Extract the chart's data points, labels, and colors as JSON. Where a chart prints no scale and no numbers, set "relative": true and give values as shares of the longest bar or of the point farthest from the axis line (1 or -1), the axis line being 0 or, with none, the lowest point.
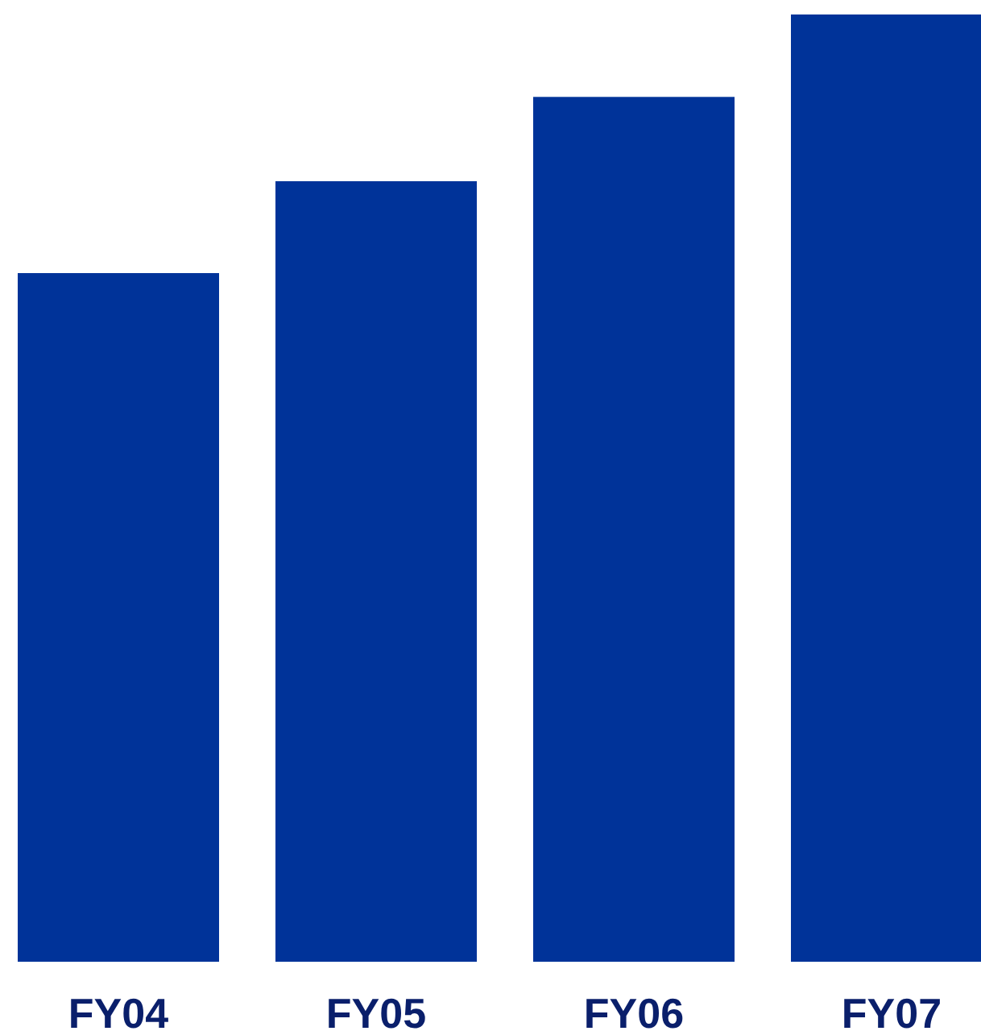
{
  "chart_data": {
    "type": "bar",
    "relative": true,
    "categories": [
      "FY04",
      "FY05",
      "FY06",
      "FY07"
    ],
    "values": [
      0.727,
      0.824,
      0.913,
      1
    ],
    "color": "#003399"
  }
}
